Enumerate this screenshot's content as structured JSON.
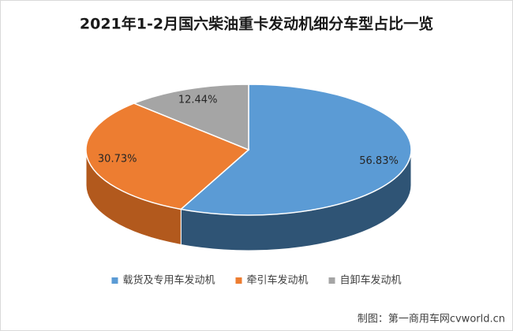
{
  "chart_data": {
    "type": "pie",
    "title": "2021年1-2月国六柴油重卡发动机细分车型占比一览",
    "categories": [
      "载货及专用车发动机",
      "牵引车发动机",
      "自卸车发动机"
    ],
    "values": [
      56.83,
      30.73,
      12.44
    ],
    "value_labels": [
      "56.83%",
      "30.73%",
      "12.44%"
    ],
    "colors": [
      "#5b9bd5",
      "#ed7d31",
      "#a5a5a5"
    ],
    "side_colors": [
      "#2f5475",
      "#b2591d",
      "#7a7a7a"
    ],
    "legend": "bottom",
    "source": "制图：第一商用车网cvworld.cn"
  }
}
